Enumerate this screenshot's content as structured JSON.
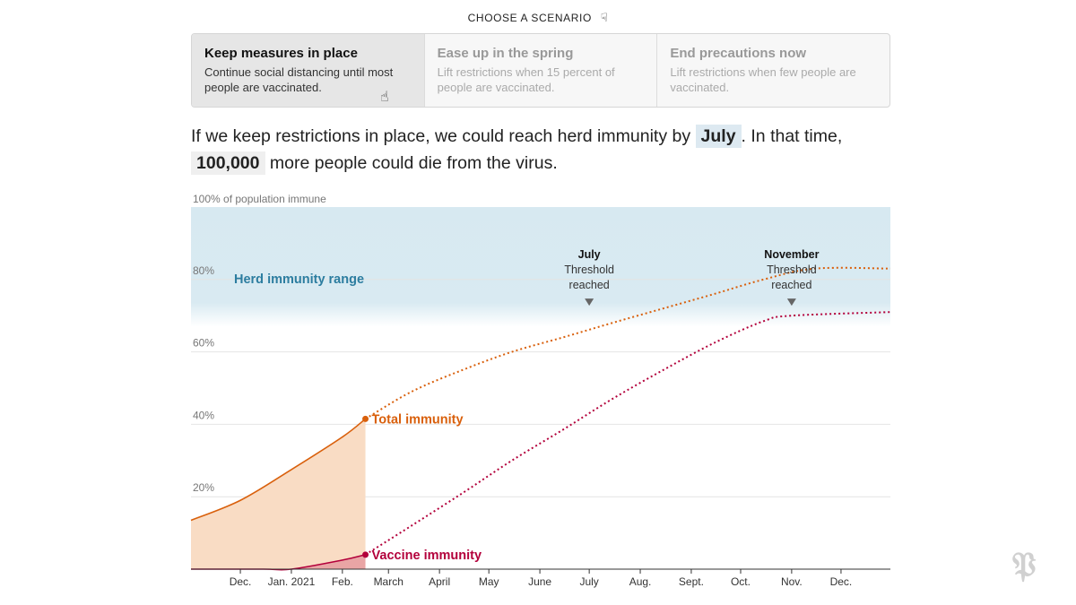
{
  "header": {
    "choose_label": "CHOOSE A SCENARIO",
    "hand_icon": "pointing-hand-icon"
  },
  "scenarios": [
    {
      "title": "Keep measures in place",
      "desc": "Continue social distancing until most people are vaccinated.",
      "active": true
    },
    {
      "title": "Ease up in the spring",
      "desc": "Lift restrictions when 15 percent of people are vaccinated.",
      "active": false
    },
    {
      "title": "End precautions now",
      "desc": "Lift restrictions when few people are vaccinated.",
      "active": false
    }
  ],
  "summary": {
    "before": "If we keep restrictions in place, we could reach herd immunity by",
    "month": "July",
    "middle": ". In that time,",
    "deaths": "100,000",
    "after": "more people could die from the virus."
  },
  "colors": {
    "total": "#d9600c",
    "vaccine": "#b3003b",
    "herd_band": "#d7e9f1",
    "herd_text": "#2c7da0",
    "total_fill": "#f9dcc4",
    "vaccine_fill": "#e9a5a5"
  },
  "chart_data": {
    "type": "line",
    "y_axis_title": "100% of population immune",
    "ylim": [
      0,
      100
    ],
    "y_ticks": [
      20,
      40,
      60,
      80
    ],
    "y_tick_labels": [
      "20%",
      "40%",
      "60%",
      "80%"
    ],
    "x_domain": [
      "2020-11-01",
      "2021-12-31"
    ],
    "x_ticks": [
      {
        "date": "2020-12-01",
        "label": "Dec."
      },
      {
        "date": "2021-01-01",
        "label": "Jan. 2021"
      },
      {
        "date": "2021-02-01",
        "label": "Feb."
      },
      {
        "date": "2021-03-01",
        "label": "March"
      },
      {
        "date": "2021-04-01",
        "label": "April"
      },
      {
        "date": "2021-05-01",
        "label": "May"
      },
      {
        "date": "2021-06-01",
        "label": "June"
      },
      {
        "date": "2021-07-01",
        "label": "July"
      },
      {
        "date": "2021-08-01",
        "label": "Aug."
      },
      {
        "date": "2021-09-01",
        "label": "Sept."
      },
      {
        "date": "2021-10-01",
        "label": "Oct."
      },
      {
        "date": "2021-11-01",
        "label": "Nov."
      },
      {
        "date": "2021-12-01",
        "label": "Dec."
      }
    ],
    "herd_band": {
      "label": "Herd immunity range",
      "from": 70,
      "to": 100
    },
    "current_date": "2021-02-15",
    "series": [
      {
        "name": "Total immunity",
        "key": "total",
        "points": [
          [
            "2020-11-01",
            13.5
          ],
          [
            "2020-12-01",
            19.0
          ],
          [
            "2021-01-01",
            27.5
          ],
          [
            "2021-02-01",
            36.5
          ],
          [
            "2021-02-15",
            41.5
          ],
          [
            "2021-03-15",
            49.0
          ],
          [
            "2021-04-15",
            55.0
          ],
          [
            "2021-05-15",
            60.0
          ],
          [
            "2021-06-15",
            64.0
          ],
          [
            "2021-07-15",
            68.0
          ],
          [
            "2021-08-15",
            72.0
          ],
          [
            "2021-09-15",
            76.0
          ],
          [
            "2021-10-15",
            80.0
          ],
          [
            "2021-11-15",
            83.0
          ],
          [
            "2021-12-31",
            83.0
          ]
        ]
      },
      {
        "name": "Vaccine immunity",
        "key": "vaccine",
        "points": [
          [
            "2020-11-01",
            0
          ],
          [
            "2020-12-15",
            0
          ],
          [
            "2021-01-01",
            0
          ],
          [
            "2021-02-01",
            2.5
          ],
          [
            "2021-02-15",
            4.0
          ],
          [
            "2021-03-15",
            12.0
          ],
          [
            "2021-04-15",
            21.0
          ],
          [
            "2021-05-15",
            30.0
          ],
          [
            "2021-06-15",
            38.5
          ],
          [
            "2021-07-15",
            47.0
          ],
          [
            "2021-08-15",
            55.0
          ],
          [
            "2021-09-15",
            62.5
          ],
          [
            "2021-10-15",
            68.5
          ],
          [
            "2021-11-01",
            70.0
          ],
          [
            "2021-12-31",
            71.0
          ]
        ]
      }
    ],
    "annotations": [
      {
        "month": "July",
        "line1": "Threshold",
        "line2": "reached",
        "date": "2021-07-01",
        "value": 73
      },
      {
        "month": "November",
        "line1": "Threshold",
        "line2": "reached",
        "date": "2021-11-01",
        "value": 73
      }
    ]
  }
}
